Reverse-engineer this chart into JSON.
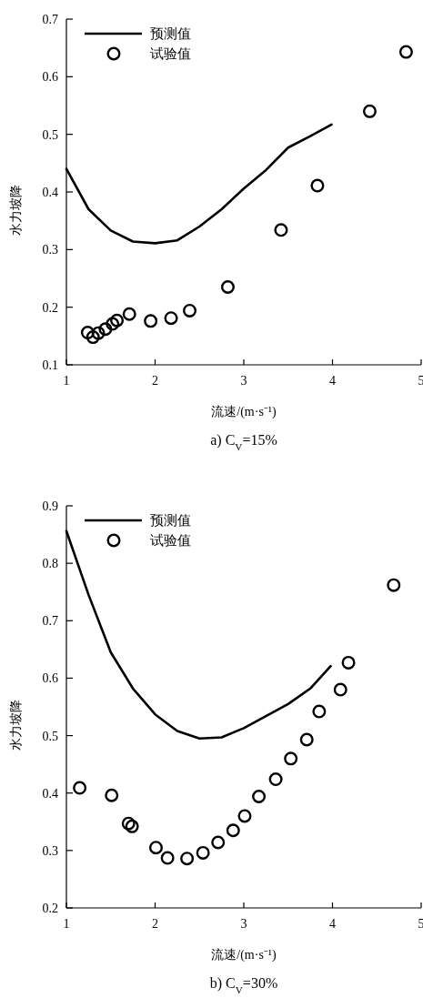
{
  "chart_data": [
    {
      "type": "scatter",
      "title": "a) C$_{V}$=15%",
      "xlabel": "流速/(m·s⁻¹)",
      "ylabel": "水力坡降",
      "xlim": [
        1,
        5
      ],
      "xticks": [
        1,
        2,
        3,
        4,
        5
      ],
      "ylim": [
        0.1,
        0.7
      ],
      "yticks": [
        0.1,
        0.2,
        0.3,
        0.4,
        0.5,
        0.6,
        0.7
      ],
      "grid": false,
      "legend": "top left",
      "series": [
        {
          "name": "预测值",
          "type": "line",
          "color": "#000000",
          "marker": "none",
          "line_style": "solid",
          "x": [
            1,
            1.25,
            1.5,
            1.75,
            2,
            2.25,
            2.5,
            2.75,
            3,
            3.25,
            3.5,
            3.75,
            3.99
          ],
          "values": [
            0.44,
            0.37,
            0.333,
            0.314,
            0.311,
            0.316,
            0.34,
            0.37,
            0.406,
            0.438,
            0.477,
            0.497,
            0.517
          ]
        },
        {
          "name": "试验值",
          "type": "scatter",
          "color": "#000000",
          "marker": "circle",
          "x": [
            1.24,
            1.3,
            1.36,
            1.44,
            1.52,
            1.57,
            1.71,
            1.95,
            2.18,
            2.39,
            2.82,
            3.42,
            3.83,
            4.42,
            4.83
          ],
          "values": [
            0.156,
            0.148,
            0.155,
            0.162,
            0.171,
            0.177,
            0.188,
            0.176,
            0.181,
            0.194,
            0.235,
            0.334,
            0.411,
            0.54,
            0.643
          ]
        }
      ]
    },
    {
      "type": "scatter",
      "title": "b) C$_{V}$=30%",
      "xlabel": "流速/(m·s⁻¹)",
      "ylabel": "水力坡降",
      "xlim": [
        1,
        5
      ],
      "xticks": [
        1,
        2,
        3,
        4,
        5
      ],
      "ylim": [
        0.2,
        0.9
      ],
      "yticks": [
        0.2,
        0.3,
        0.4,
        0.5,
        0.6,
        0.7,
        0.8,
        0.9
      ],
      "grid": false,
      "legend": "top left",
      "series": [
        {
          "name": "预测值",
          "type": "line",
          "color": "#000000",
          "marker": "none",
          "line_style": "solid",
          "x": [
            1,
            1.25,
            1.5,
            1.75,
            2,
            2.25,
            2.5,
            2.75,
            3,
            3.25,
            3.5,
            3.75,
            3.98
          ],
          "values": [
            0.856,
            0.745,
            0.645,
            0.582,
            0.537,
            0.508,
            0.495,
            0.497,
            0.513,
            0.534,
            0.555,
            0.582,
            0.621
          ]
        },
        {
          "name": "试验值",
          "type": "scatter",
          "color": "#000000",
          "marker": "circle",
          "x": [
            1.15,
            1.51,
            1.7,
            1.74,
            2.01,
            2.14,
            2.36,
            2.54,
            2.71,
            2.88,
            3.01,
            3.17,
            3.36,
            3.53,
            3.71,
            3.85,
            4.09,
            4.18,
            4.69
          ],
          "values": [
            0.409,
            0.396,
            0.347,
            0.342,
            0.305,
            0.287,
            0.286,
            0.296,
            0.314,
            0.335,
            0.36,
            0.394,
            0.424,
            0.46,
            0.493,
            0.542,
            0.58,
            0.627,
            0.762
          ]
        }
      ]
    }
  ]
}
